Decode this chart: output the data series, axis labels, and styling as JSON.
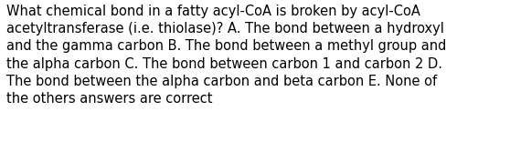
{
  "lines": [
    "What chemical bond in a fatty acyl-CoA is broken by acyl-CoA",
    "acetyltransferase (i.e. thiolase)? A. The bond between a hydroxyl",
    "and the gamma carbon B. The bond between a methyl group and",
    "the alpha carbon C. The bond between carbon 1 and carbon 2 D.",
    "The bond between the alpha carbon and beta carbon E. None of",
    "the others answers are correct"
  ],
  "background_color": "#ffffff",
  "text_color": "#000000",
  "font_size": 10.5,
  "fig_width": 5.58,
  "fig_height": 1.67,
  "dpi": 100
}
